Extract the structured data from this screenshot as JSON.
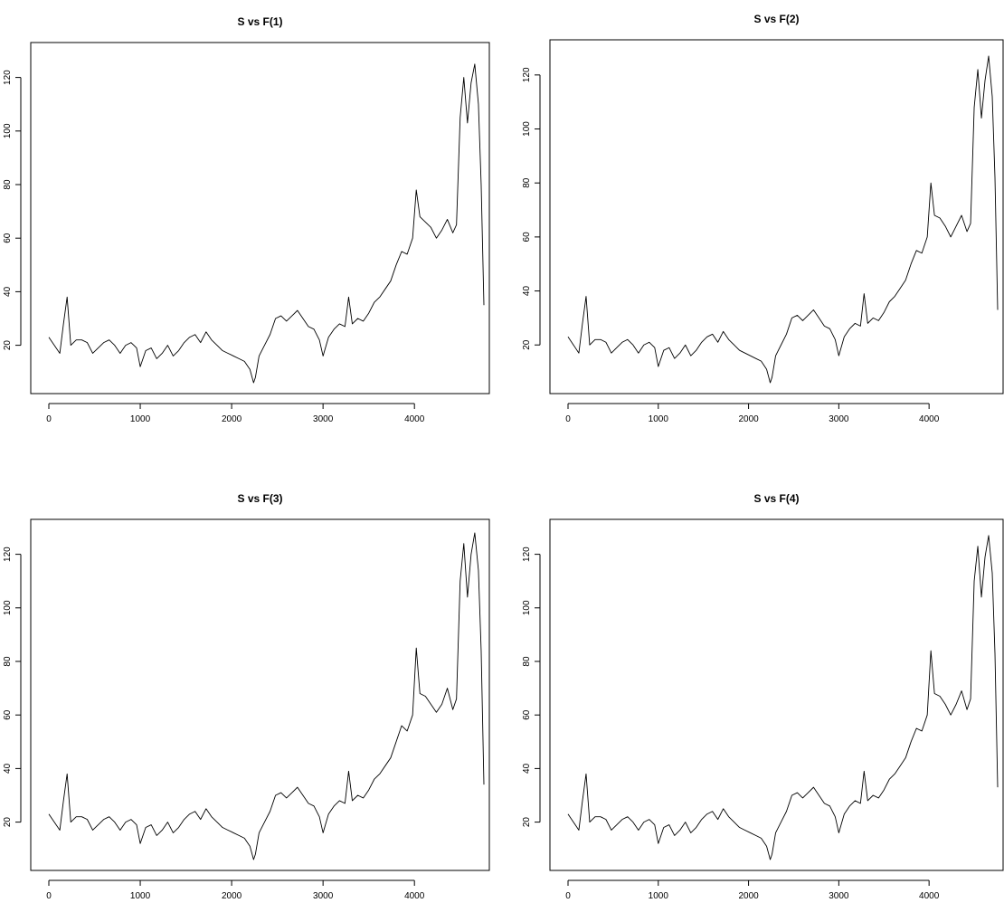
{
  "figure": {
    "background": "#ffffff",
    "ink_color": "#000000"
  },
  "chart_data": [
    {
      "type": "line",
      "title": "S vs F(1)",
      "xlabel": "",
      "ylabel": "",
      "xlim": [
        0,
        4760
      ],
      "ylim": [
        5,
        130
      ],
      "xticks": [
        0,
        1000,
        2000,
        3000,
        4000
      ],
      "yticks": [
        20,
        40,
        60,
        80,
        100,
        120
      ],
      "box": true,
      "grid": false,
      "legend": "none",
      "series": [
        {
          "color": "#000000",
          "x": [
            0,
            60,
            120,
            160,
            200,
            240,
            300,
            360,
            420,
            480,
            540,
            600,
            660,
            720,
            780,
            840,
            900,
            960,
            1000,
            1060,
            1120,
            1180,
            1240,
            1300,
            1360,
            1420,
            1480,
            1540,
            1600,
            1660,
            1720,
            1780,
            1840,
            1900,
            1960,
            2020,
            2080,
            2140,
            2200,
            2240,
            2260,
            2300,
            2360,
            2420,
            2480,
            2540,
            2600,
            2660,
            2720,
            2780,
            2840,
            2900,
            2960,
            3000,
            3060,
            3120,
            3180,
            3240,
            3280,
            3320,
            3380,
            3440,
            3500,
            3560,
            3620,
            3680,
            3740,
            3800,
            3860,
            3920,
            3980,
            4020,
            4060,
            4120,
            4180,
            4240,
            4300,
            4360,
            4420,
            4460,
            4500,
            4540,
            4580,
            4620,
            4660,
            4700,
            4730,
            4760
          ],
          "y": [
            23,
            20,
            17,
            28,
            38,
            20,
            22,
            22,
            21,
            17,
            19,
            21,
            22,
            20,
            17,
            20,
            21,
            19,
            12,
            18,
            19,
            15,
            17,
            20,
            16,
            18,
            21,
            23,
            24,
            21,
            25,
            22,
            20,
            18,
            17,
            16,
            15,
            14,
            11,
            6,
            8,
            16,
            20,
            24,
            30,
            31,
            29,
            31,
            33,
            30,
            27,
            26,
            22,
            16,
            23,
            26,
            28,
            27,
            38,
            28,
            30,
            29,
            32,
            36,
            38,
            41,
            44,
            50,
            55,
            54,
            60,
            78,
            68,
            66,
            64,
            60,
            63,
            67,
            62,
            65,
            105,
            120,
            103,
            118,
            125,
            110,
            80,
            35
          ]
        }
      ]
    },
    {
      "type": "line",
      "title": "S vs F(2)",
      "xlabel": "",
      "ylabel": "",
      "xlim": [
        0,
        4760
      ],
      "ylim": [
        5,
        130
      ],
      "xticks": [
        0,
        1000,
        2000,
        3000,
        4000
      ],
      "yticks": [
        20,
        40,
        60,
        80,
        100,
        120
      ],
      "box": true,
      "grid": false,
      "legend": "none",
      "series": [
        {
          "color": "#000000",
          "x": [
            0,
            60,
            120,
            160,
            200,
            240,
            300,
            360,
            420,
            480,
            540,
            600,
            660,
            720,
            780,
            840,
            900,
            960,
            1000,
            1060,
            1120,
            1180,
            1240,
            1300,
            1360,
            1420,
            1480,
            1540,
            1600,
            1660,
            1720,
            1780,
            1840,
            1900,
            1960,
            2020,
            2080,
            2140,
            2200,
            2240,
            2260,
            2300,
            2360,
            2420,
            2480,
            2540,
            2600,
            2660,
            2720,
            2780,
            2840,
            2900,
            2960,
            3000,
            3060,
            3120,
            3180,
            3240,
            3280,
            3320,
            3380,
            3440,
            3500,
            3560,
            3620,
            3680,
            3740,
            3800,
            3860,
            3920,
            3980,
            4020,
            4060,
            4120,
            4180,
            4240,
            4300,
            4360,
            4420,
            4460,
            4500,
            4540,
            4580,
            4620,
            4660,
            4700,
            4730,
            4760
          ],
          "y": [
            23,
            20,
            17,
            28,
            38,
            20,
            22,
            22,
            21,
            17,
            19,
            21,
            22,
            20,
            17,
            20,
            21,
            19,
            12,
            18,
            19,
            15,
            17,
            20,
            16,
            18,
            21,
            23,
            24,
            21,
            25,
            22,
            20,
            18,
            17,
            16,
            15,
            14,
            11,
            6,
            8,
            16,
            20,
            24,
            30,
            31,
            29,
            31,
            33,
            30,
            27,
            26,
            22,
            16,
            23,
            26,
            28,
            27,
            39,
            28,
            30,
            29,
            32,
            36,
            38,
            41,
            44,
            50,
            55,
            54,
            60,
            80,
            68,
            67,
            64,
            60,
            64,
            68,
            62,
            65,
            108,
            122,
            104,
            118,
            127,
            112,
            82,
            33
          ]
        }
      ]
    },
    {
      "type": "line",
      "title": "S vs F(3)",
      "xlabel": "",
      "ylabel": "",
      "xlim": [
        0,
        4760
      ],
      "ylim": [
        5,
        130
      ],
      "xticks": [
        0,
        1000,
        2000,
        3000,
        4000
      ],
      "yticks": [
        20,
        40,
        60,
        80,
        100,
        120
      ],
      "box": true,
      "grid": false,
      "legend": "none",
      "series": [
        {
          "color": "#000000",
          "x": [
            0,
            60,
            120,
            160,
            200,
            240,
            300,
            360,
            420,
            480,
            540,
            600,
            660,
            720,
            780,
            840,
            900,
            960,
            1000,
            1060,
            1120,
            1180,
            1240,
            1300,
            1360,
            1420,
            1480,
            1540,
            1600,
            1660,
            1720,
            1780,
            1840,
            1900,
            1960,
            2020,
            2080,
            2140,
            2200,
            2240,
            2260,
            2300,
            2360,
            2420,
            2480,
            2540,
            2600,
            2660,
            2720,
            2780,
            2840,
            2900,
            2960,
            3000,
            3060,
            3120,
            3180,
            3240,
            3280,
            3320,
            3380,
            3440,
            3500,
            3560,
            3620,
            3680,
            3740,
            3800,
            3860,
            3920,
            3980,
            4020,
            4060,
            4120,
            4180,
            4240,
            4300,
            4360,
            4420,
            4460,
            4500,
            4540,
            4580,
            4620,
            4660,
            4700,
            4730,
            4760
          ],
          "y": [
            23,
            20,
            17,
            28,
            38,
            20,
            22,
            22,
            21,
            17,
            19,
            21,
            22,
            20,
            17,
            20,
            21,
            19,
            12,
            18,
            19,
            15,
            17,
            20,
            16,
            18,
            21,
            23,
            24,
            21,
            25,
            22,
            20,
            18,
            17,
            16,
            15,
            14,
            11,
            6,
            8,
            16,
            20,
            24,
            30,
            31,
            29,
            31,
            33,
            30,
            27,
            26,
            22,
            16,
            23,
            26,
            28,
            27,
            39,
            28,
            30,
            29,
            32,
            36,
            38,
            41,
            44,
            50,
            56,
            54,
            60,
            85,
            68,
            67,
            64,
            61,
            64,
            70,
            62,
            66,
            110,
            124,
            104,
            120,
            128,
            114,
            84,
            34
          ]
        }
      ]
    },
    {
      "type": "line",
      "title": "S vs F(4)",
      "xlabel": "",
      "ylabel": "",
      "xlim": [
        0,
        4760
      ],
      "ylim": [
        5,
        130
      ],
      "xticks": [
        0,
        1000,
        2000,
        3000,
        4000
      ],
      "yticks": [
        20,
        40,
        60,
        80,
        100,
        120
      ],
      "box": true,
      "grid": false,
      "legend": "none",
      "series": [
        {
          "color": "#000000",
          "x": [
            0,
            60,
            120,
            160,
            200,
            240,
            300,
            360,
            420,
            480,
            540,
            600,
            660,
            720,
            780,
            840,
            900,
            960,
            1000,
            1060,
            1120,
            1180,
            1240,
            1300,
            1360,
            1420,
            1480,
            1540,
            1600,
            1660,
            1720,
            1780,
            1840,
            1900,
            1960,
            2020,
            2080,
            2140,
            2200,
            2240,
            2260,
            2300,
            2360,
            2420,
            2480,
            2540,
            2600,
            2660,
            2720,
            2780,
            2840,
            2900,
            2960,
            3000,
            3060,
            3120,
            3180,
            3240,
            3280,
            3320,
            3380,
            3440,
            3500,
            3560,
            3620,
            3680,
            3740,
            3800,
            3860,
            3920,
            3980,
            4020,
            4060,
            4120,
            4180,
            4240,
            4300,
            4360,
            4420,
            4460,
            4500,
            4540,
            4580,
            4620,
            4660,
            4700,
            4730,
            4760
          ],
          "y": [
            23,
            20,
            17,
            28,
            38,
            20,
            22,
            22,
            21,
            17,
            19,
            21,
            22,
            20,
            17,
            20,
            21,
            19,
            12,
            18,
            19,
            15,
            17,
            20,
            16,
            18,
            21,
            23,
            24,
            21,
            25,
            22,
            20,
            18,
            17,
            16,
            15,
            14,
            11,
            6,
            8,
            16,
            20,
            24,
            30,
            31,
            29,
            31,
            33,
            30,
            27,
            26,
            22,
            16,
            23,
            26,
            28,
            27,
            39,
            28,
            30,
            29,
            32,
            36,
            38,
            41,
            44,
            50,
            55,
            54,
            60,
            84,
            68,
            67,
            64,
            60,
            64,
            69,
            62,
            66,
            110,
            123,
            104,
            119,
            127,
            113,
            83,
            33
          ]
        }
      ]
    }
  ]
}
